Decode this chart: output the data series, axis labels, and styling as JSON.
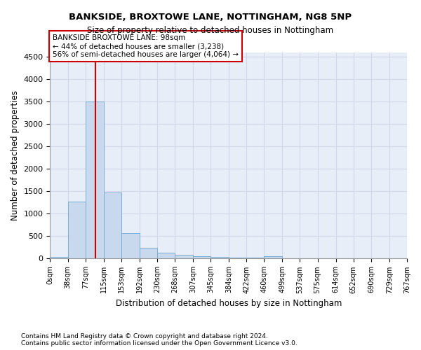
{
  "title1": "BANKSIDE, BROXTOWE LANE, NOTTINGHAM, NG8 5NP",
  "title2": "Size of property relative to detached houses in Nottingham",
  "xlabel": "Distribution of detached houses by size in Nottingham",
  "ylabel": "Number of detached properties",
  "bar_color": "#c8d9ee",
  "bar_edge_color": "#7badd4",
  "grid_color": "#d0d8e8",
  "background_color": "#e8eef8",
  "vline_color": "#cc0000",
  "vline_x": 98,
  "annotation_line1": "BANKSIDE BROXTOWE LANE: 98sqm",
  "annotation_line2": "← 44% of detached houses are smaller (3,238)",
  "annotation_line3": "56% of semi-detached houses are larger (4,064) →",
  "annotation_box_color": "#cc0000",
  "bin_edges": [
    0,
    38,
    77,
    115,
    153,
    192,
    230,
    268,
    307,
    345,
    384,
    422,
    460,
    499,
    537,
    575,
    614,
    652,
    690,
    729,
    767
  ],
  "bar_heights": [
    40,
    1280,
    3500,
    1480,
    570,
    240,
    130,
    80,
    55,
    35,
    30,
    25,
    55,
    10,
    0,
    0,
    0,
    0,
    0,
    0
  ],
  "ylim": [
    0,
    4600
  ],
  "yticks": [
    0,
    500,
    1000,
    1500,
    2000,
    2500,
    3000,
    3500,
    4000,
    4500
  ],
  "footnote1": "Contains HM Land Registry data © Crown copyright and database right 2024.",
  "footnote2": "Contains public sector information licensed under the Open Government Licence v3.0."
}
